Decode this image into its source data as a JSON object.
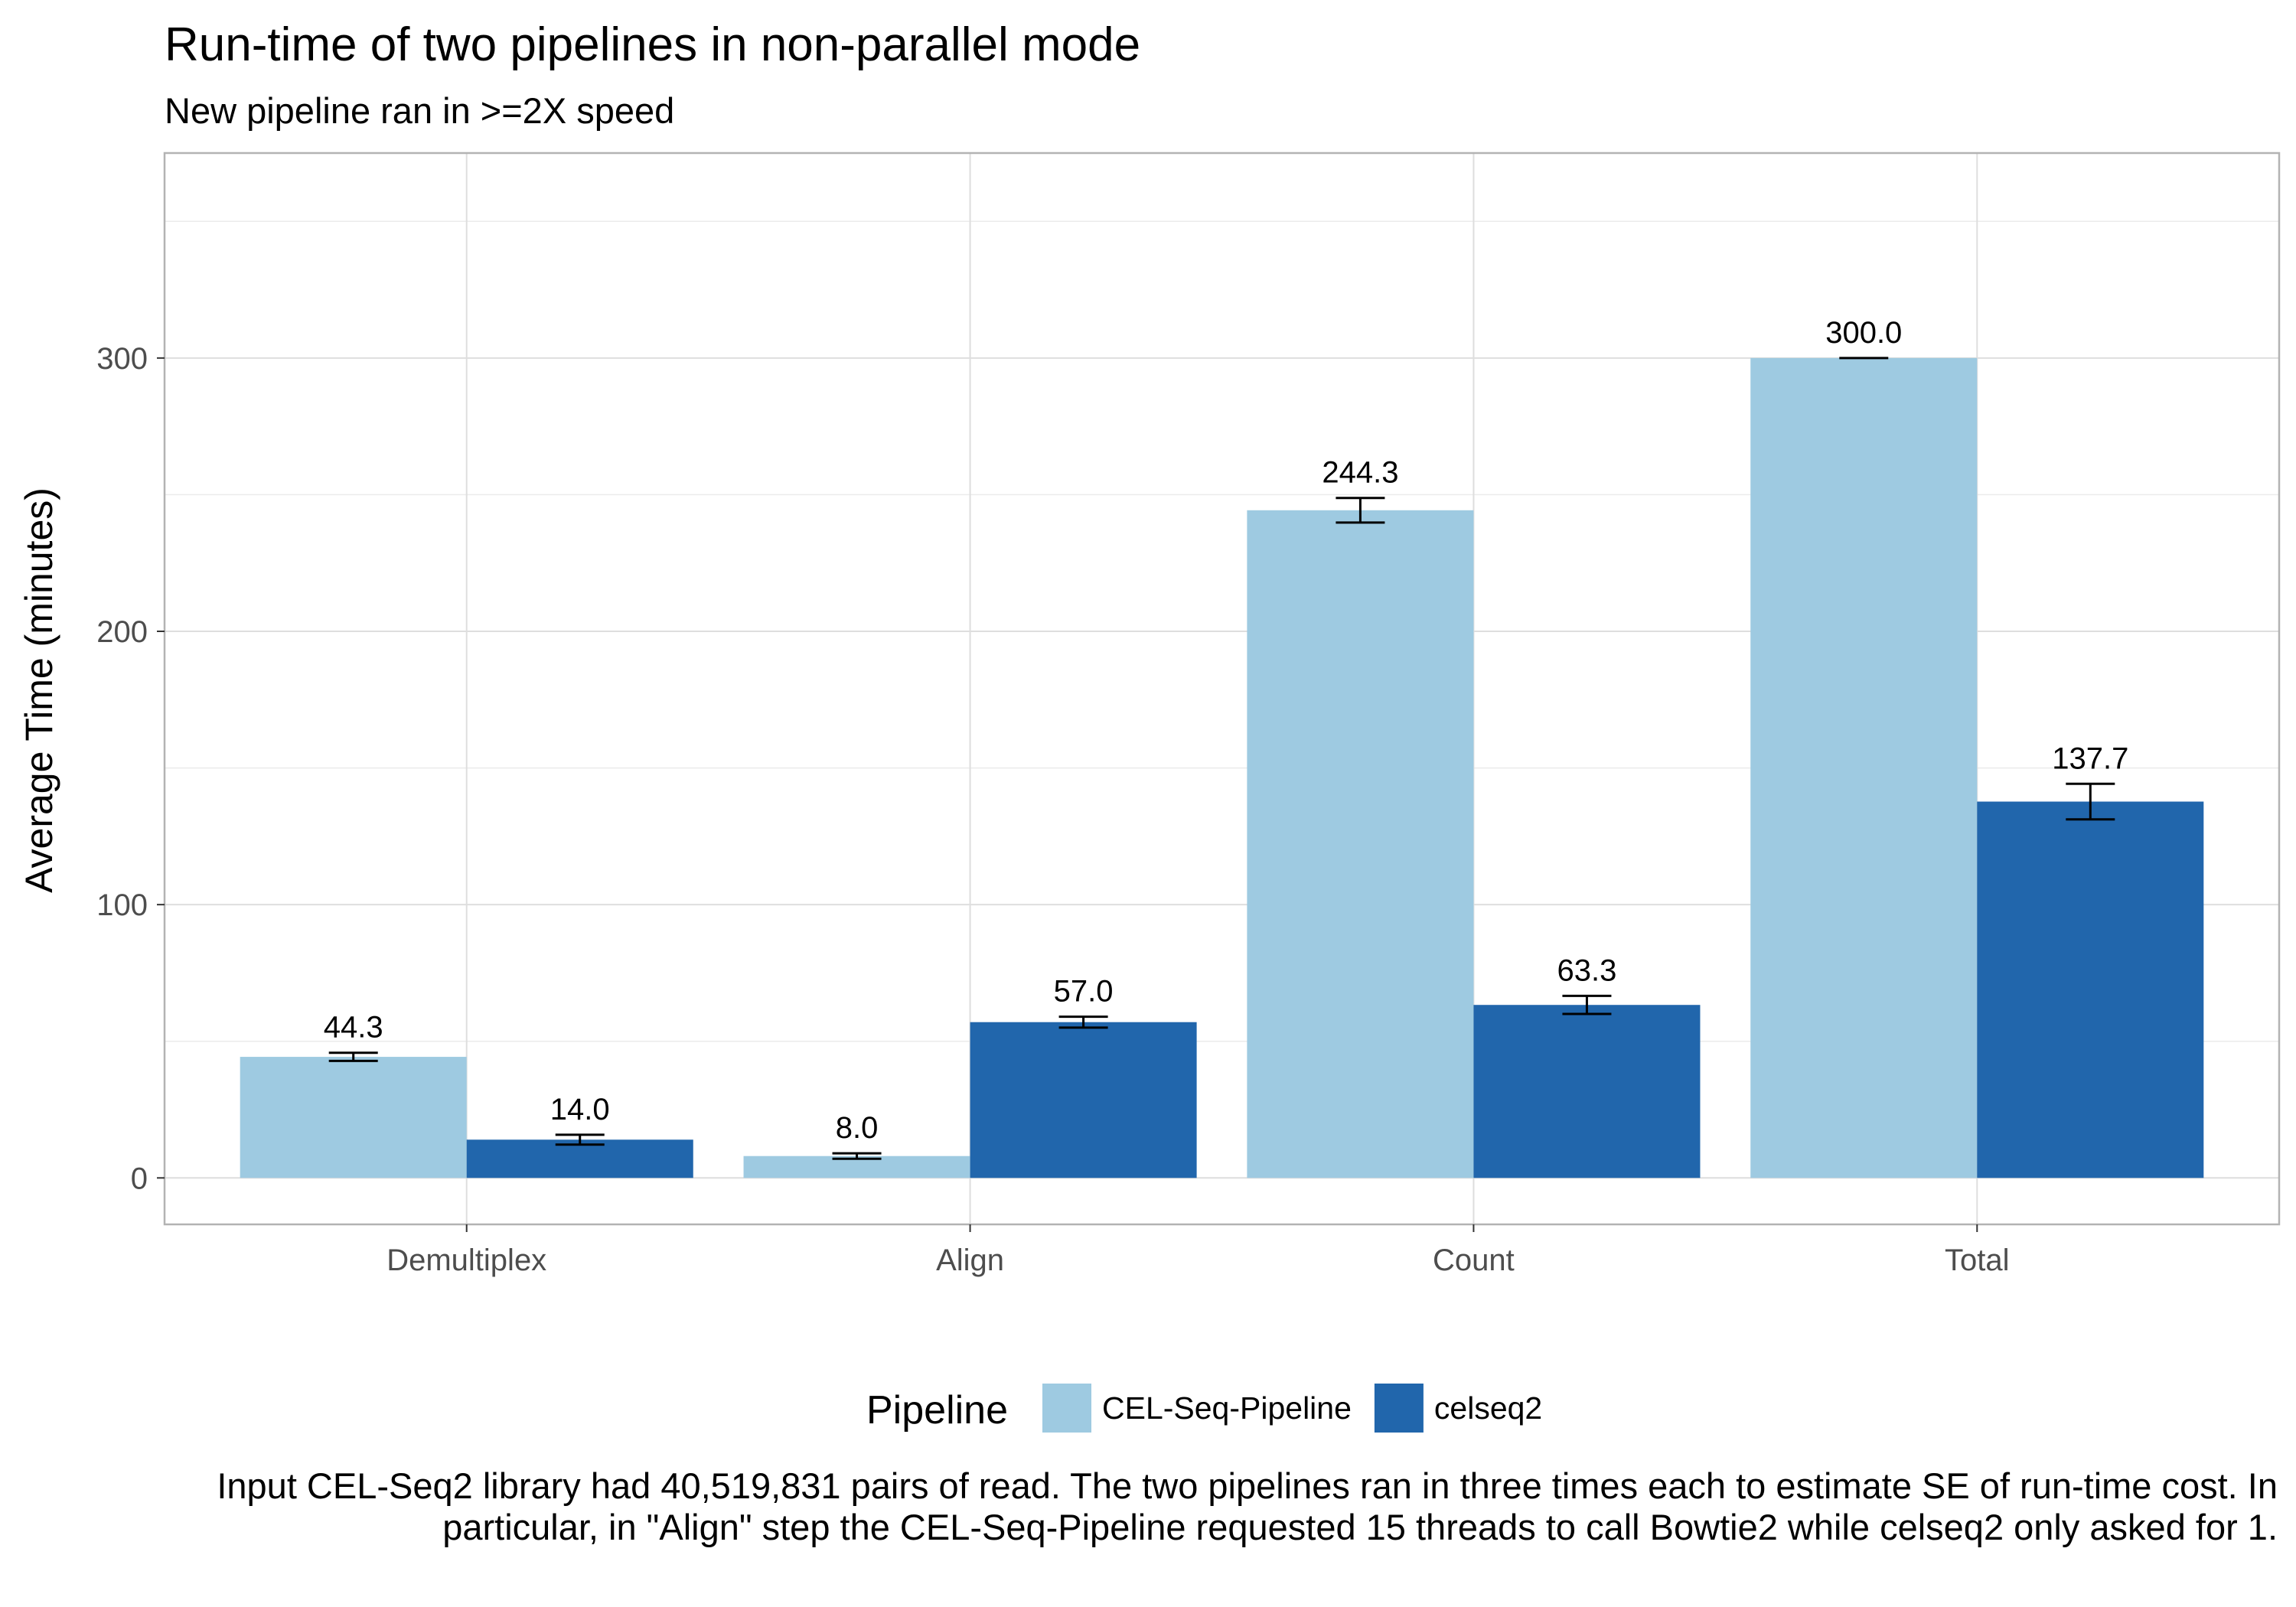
{
  "chart_data": {
    "type": "bar",
    "title": "Run-time of two pipelines in non-parallel mode",
    "subtitle": "New pipeline ran in >=2X speed",
    "xlabel": "",
    "ylabel": "Average Time (minutes)",
    "categories": [
      "Demultiplex",
      "Align",
      "Count",
      "Total"
    ],
    "ylim": [
      -17,
      375
    ],
    "yticks": [
      0,
      100,
      200,
      300
    ],
    "grid": true,
    "legend": {
      "title": "Pipeline",
      "position": "bottom"
    },
    "series": [
      {
        "name": "CEL-Seq-Pipeline",
        "color": "#9ecae1",
        "values": [
          44.3,
          8.0,
          244.3,
          300.0
        ],
        "labels": [
          "44.3",
          "8.0",
          "244.3",
          "300.0"
        ],
        "se": [
          1.5,
          1.0,
          4.5,
          0.0
        ]
      },
      {
        "name": "celseq2",
        "color": "#2166ac",
        "values": [
          14.0,
          57.0,
          63.3,
          137.7
        ],
        "labels": [
          "14.0",
          "57.0",
          "63.3",
          "137.7"
        ],
        "se": [
          1.8,
          2.0,
          3.3,
          6.5
        ]
      }
    ],
    "caption": "Input CEL-Seq2 library had 40,519,831 pairs of read. The two pipelines ran in three times each to estimate SE of run-time cost. In particular, in \"Align\" step the CEL-Seq-Pipeline requested 15 threads to call Bowtie2 while celseq2 only asked for 1."
  }
}
